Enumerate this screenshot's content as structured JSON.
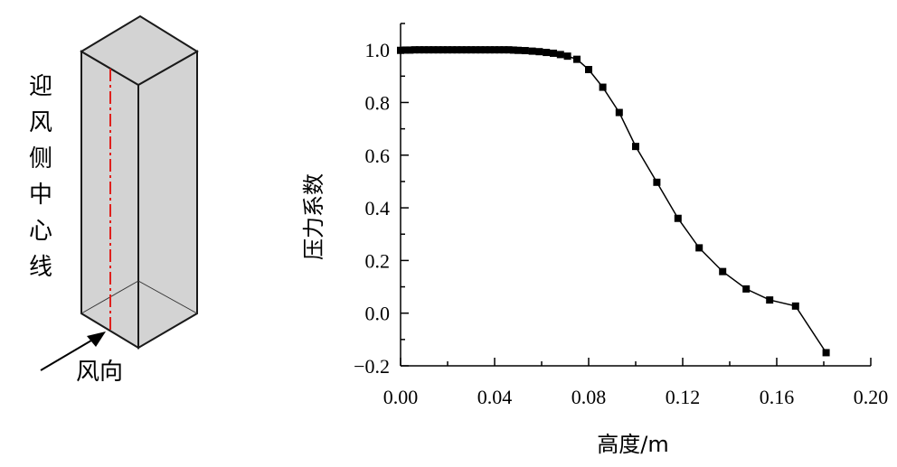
{
  "diagram": {
    "side_label_chars": [
      "迎",
      "风",
      "侧",
      "中",
      "心",
      "线"
    ],
    "wind_label": "风向",
    "colors": {
      "box_fill": "#d3d3d3",
      "box_stroke": "#1a1a1a",
      "centerline": "#e0201c"
    }
  },
  "chart_data": {
    "type": "line",
    "xlabel": "高度/m",
    "ylabel": "压力系数",
    "xlim": [
      0,
      0.2
    ],
    "ylim": [
      -0.2,
      1.1
    ],
    "x_ticks": [
      "0.00",
      "0.04",
      "0.08",
      "0.12",
      "0.16",
      "0.20"
    ],
    "y_ticks": [
      "−0.2",
      "0.0",
      "0.2",
      "0.4",
      "0.6",
      "0.8",
      "1.0"
    ],
    "grid": false,
    "marker": "square",
    "series": [
      {
        "x": [
          0.0,
          0.002,
          0.004,
          0.006,
          0.008,
          0.01,
          0.012,
          0.014,
          0.016,
          0.018,
          0.02,
          0.022,
          0.024,
          0.026,
          0.028,
          0.03,
          0.032,
          0.034,
          0.036,
          0.038,
          0.04,
          0.042,
          0.044,
          0.046,
          0.048,
          0.05,
          0.053,
          0.056,
          0.059,
          0.062,
          0.065,
          0.068,
          0.071,
          0.075,
          0.08,
          0.086,
          0.093,
          0.1,
          0.109,
          0.118,
          0.127,
          0.137,
          0.147,
          0.157,
          0.168,
          0.181
        ],
        "y": [
          0.998,
          0.999,
          0.999,
          1.0,
          1.0,
          1.0,
          1.0,
          1.0,
          1.0,
          1.0,
          1.0,
          1.0,
          1.0,
          1.0,
          1.0,
          1.0,
          1.0,
          1.0,
          1.0,
          1.0,
          1.0,
          1.0,
          1.0,
          1.0,
          0.999,
          0.998,
          0.997,
          0.995,
          0.993,
          0.99,
          0.987,
          0.982,
          0.976,
          0.964,
          0.925,
          0.858,
          0.762,
          0.633,
          0.497,
          0.36,
          0.248,
          0.158,
          0.092,
          0.05,
          0.027,
          -0.15
        ]
      }
    ]
  }
}
